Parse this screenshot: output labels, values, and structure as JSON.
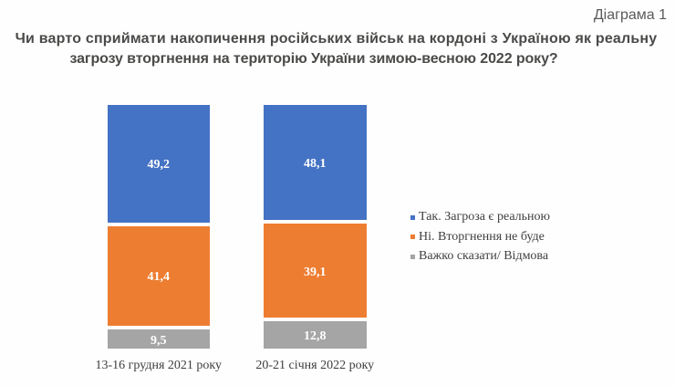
{
  "header": {
    "diagram_label": "Діаграма 1",
    "title_line1": "Чи варто сприймати накопичення російських військ на кордоні з Україною як реальну",
    "title_line2": "загрозу вторгнення на територію України зимою-весною 2022 року?"
  },
  "chart_data": {
    "type": "bar",
    "subtype": "stacked-column-100",
    "title": "Чи варто сприймати накопичення російських військ на кордоні з Україною як реальну загрозу вторгнення на територію України зимою-весною 2022 року?",
    "categories": [
      "13-16 грудня 2021 року",
      "20-21 січня 2022 року"
    ],
    "series": [
      {
        "name": "Так. Загроза є реальною",
        "color": "#4472C4",
        "values": [
          49.2,
          48.1
        ],
        "labels": [
          "49,2",
          "48,1"
        ]
      },
      {
        "name": "Ні. Вторгнення не буде",
        "color": "#ED7D31",
        "values": [
          41.4,
          39.1
        ],
        "labels": [
          "41,4",
          "39,1"
        ]
      },
      {
        "name": "Важко сказати/ Відмова",
        "color": "#A5A5A5",
        "values": [
          9.5,
          12.8
        ],
        "labels": [
          "9,5",
          "12,8"
        ]
      }
    ],
    "value_label_color": "#FFFFFF",
    "legend_position": "right",
    "grid": false,
    "axes_visible": false,
    "xlabel": "",
    "ylabel": ""
  }
}
